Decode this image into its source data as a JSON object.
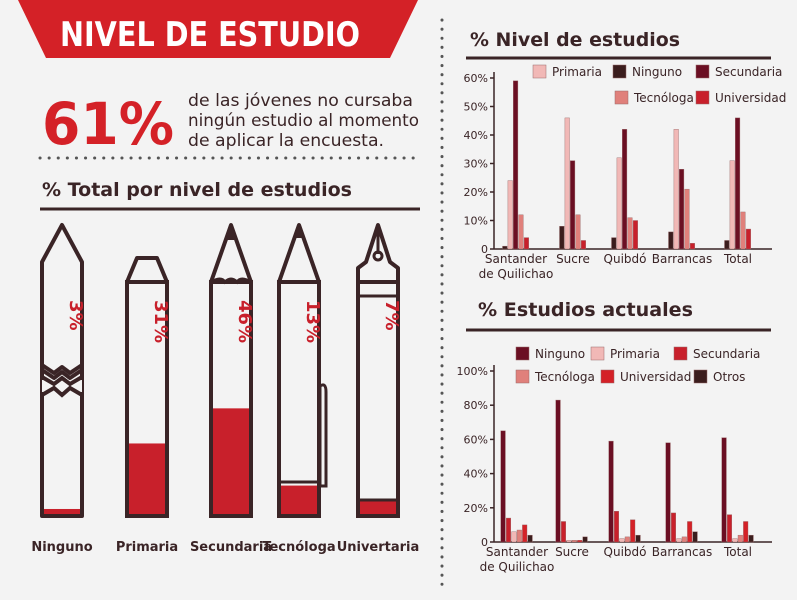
{
  "banner": {
    "title": "NIVEL DE ESTUDIO"
  },
  "headline": {
    "percent": "61%",
    "line1": "de las jóvenes no cursaba",
    "line2": "ningún estudio al momento",
    "line3": "de aplicar la encuesta."
  },
  "colors": {
    "dark_red": "#6b0f23",
    "red": "#c8202b",
    "pink": "#f1b8b6",
    "salmon": "#e0807b",
    "dark_brown": "#3b1d1d",
    "banner_red": "#d42127",
    "outline": "#3a2426"
  },
  "chart_data": [
    {
      "type": "bar",
      "title": "% Total por nivel de estudios",
      "categories": [
        "Ninguno",
        "Primaria",
        "Secundaria",
        "Tecnóloga",
        "Univertaria"
      ],
      "values": [
        3,
        31,
        46,
        13,
        7
      ],
      "value_labels": [
        "3%",
        "31%",
        "46%",
        "13%",
        "7%"
      ],
      "icons": [
        "broken-pencil",
        "pencil",
        "sharpened-pencil",
        "pen",
        "fountain-pen"
      ],
      "ylim": [
        0,
        100
      ]
    },
    {
      "type": "bar",
      "title": "% Nivel de estudios",
      "categories": [
        "Santander|de Quilichao",
        "Sucre",
        "Quibdó",
        "Barrancas",
        "Total"
      ],
      "ylim": [
        0,
        60
      ],
      "yticks": [
        0,
        10,
        20,
        30,
        40,
        50,
        60
      ],
      "ytick_labels": [
        "0",
        "10%",
        "20%",
        "30%",
        "40%",
        "50%",
        "60%"
      ],
      "grid": false,
      "legend_position": "top",
      "series": [
        {
          "name": "Ninguno",
          "color": "#3b1d1d",
          "values": [
            1,
            8,
            4,
            6,
            3
          ]
        },
        {
          "name": "Primaria",
          "color": "#f1b8b6",
          "values": [
            24,
            46,
            32,
            42,
            31
          ]
        },
        {
          "name": "Secundaria",
          "color": "#6b0f23",
          "values": [
            59,
            31,
            42,
            28,
            46
          ]
        },
        {
          "name": "Tecnóloga",
          "color": "#e0807b",
          "values": [
            12,
            12,
            11,
            21,
            13
          ]
        },
        {
          "name": "Universidad",
          "color": "#c8202b",
          "values": [
            4,
            3,
            10,
            2,
            7
          ]
        }
      ],
      "legend_order": [
        "Primaria",
        "Ninguno",
        "Secundaria",
        "Tecnóloga",
        "Universidad"
      ]
    },
    {
      "type": "bar",
      "title": "% Estudios actuales",
      "categories": [
        "Santander|de Quilichao",
        "Sucre",
        "Quibdó",
        "Barrancas",
        "Total"
      ],
      "ylim": [
        0,
        100
      ],
      "yticks": [
        0,
        20,
        40,
        60,
        80,
        100
      ],
      "ytick_labels": [
        "0",
        "20%",
        "40%",
        "60%",
        "80%",
        "100%"
      ],
      "grid": false,
      "legend_position": "top",
      "series": [
        {
          "name": "Ninguno",
          "color": "#6b0f23",
          "values": [
            65,
            83,
            59,
            58,
            61
          ]
        },
        {
          "name": "Secundaria",
          "color": "#c8202b",
          "values": [
            14,
            12,
            18,
            17,
            16
          ]
        },
        {
          "name": "Primaria",
          "color": "#f1b8b6",
          "values": [
            6,
            1,
            2,
            2,
            2
          ]
        },
        {
          "name": "Tecnóloga",
          "color": "#e0807b",
          "values": [
            7,
            1,
            3,
            3,
            4
          ]
        },
        {
          "name": "Universidad",
          "color": "#d42127",
          "values": [
            10,
            1,
            13,
            12,
            12
          ]
        },
        {
          "name": "Otros",
          "color": "#3b1d1d",
          "values": [
            4,
            3,
            4,
            6,
            4
          ]
        }
      ],
      "legend_order": [
        "Ninguno",
        "Primaria",
        "Secundaria",
        "Tecnóloga",
        "Universidad",
        "Otros"
      ]
    }
  ]
}
